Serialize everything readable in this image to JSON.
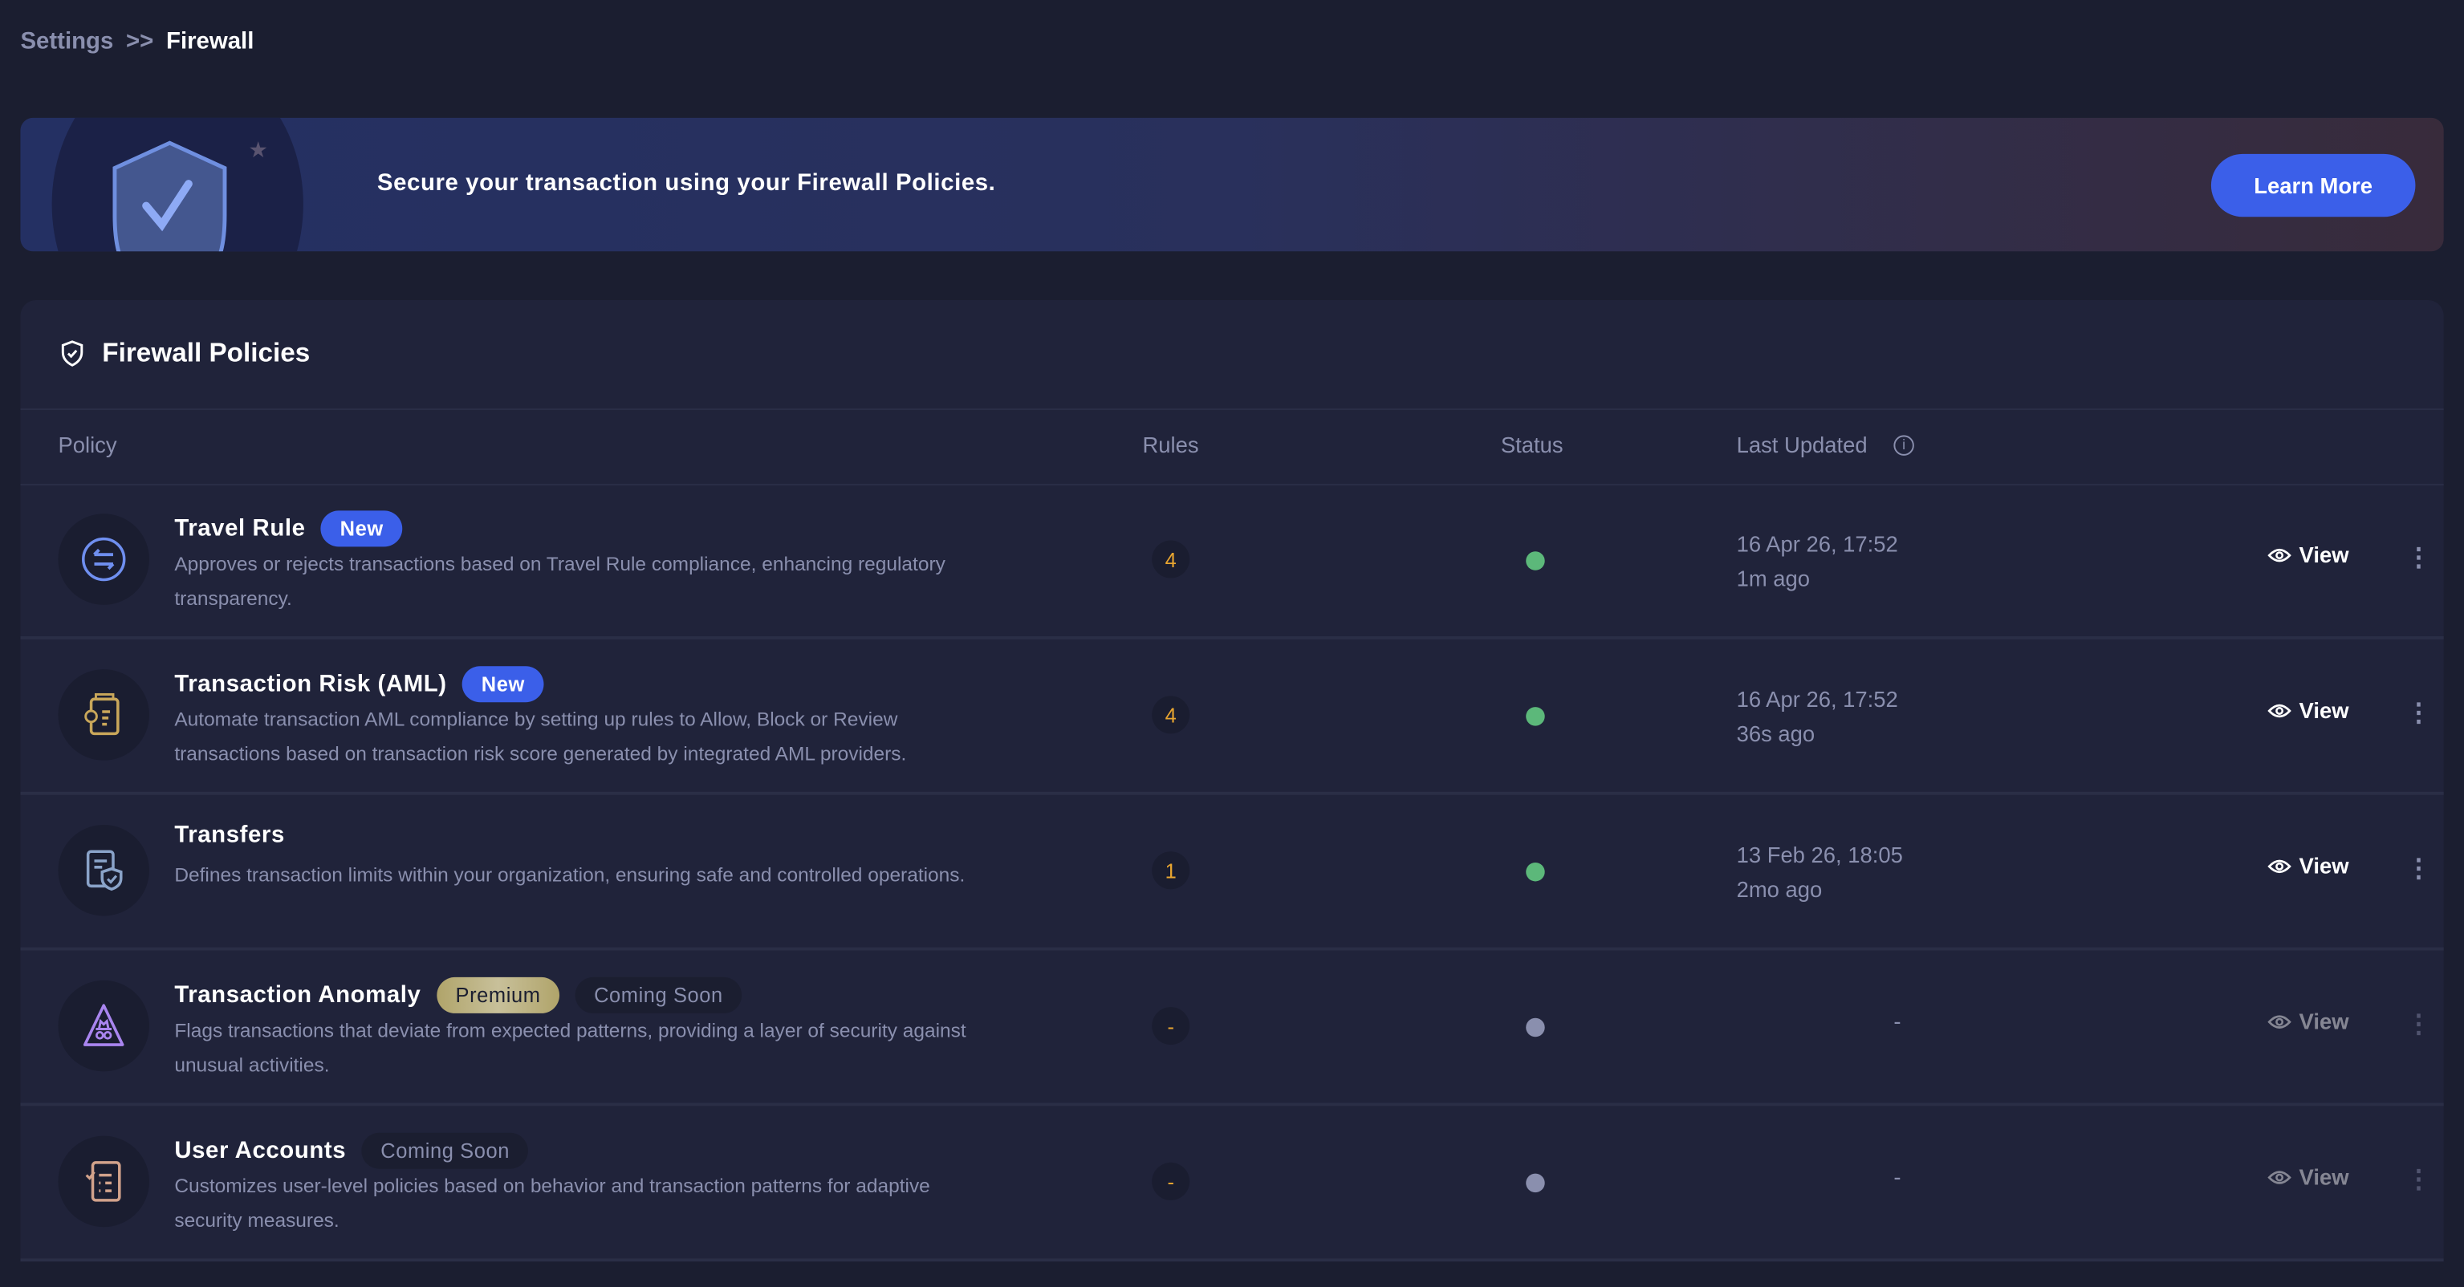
{
  "breadcrumb": {
    "parent": "Settings",
    "separator": ">>",
    "current": "Firewall"
  },
  "banner": {
    "message": "Secure your transaction using your Firewall Policies.",
    "button": "Learn More"
  },
  "card": {
    "title": "Firewall Policies"
  },
  "table": {
    "columns": {
      "policy": "Policy",
      "rules": "Rules",
      "status": "Status",
      "last_updated": "Last Updated"
    },
    "view_label": "View",
    "rows": [
      {
        "name": "Travel Rule",
        "badges": [
          {
            "label": "New",
            "type": "new"
          }
        ],
        "description": "Approves or rejects transactions based on Travel Rule compliance, enhancing regulatory transparency.",
        "rules": "4",
        "status": "active",
        "date": "16 Apr 26, 17:52",
        "ago": "1m ago",
        "icon": "transfer-arrows-icon"
      },
      {
        "name": "Transaction Risk (AML)",
        "badges": [
          {
            "label": "New",
            "type": "new"
          }
        ],
        "description": "Automate transaction AML compliance by setting up rules to Allow, Block or Review transactions based on transaction risk score generated by integrated AML providers.",
        "rules": "4",
        "status": "active",
        "date": "16 Apr 26, 17:52",
        "ago": "36s ago",
        "icon": "risk-document-icon"
      },
      {
        "name": "Transfers",
        "badges": [],
        "description": "Defines transaction limits within your organization, ensuring safe and controlled operations.",
        "rules": "1",
        "status": "active",
        "date": "13 Feb 26, 18:05",
        "ago": "2mo ago",
        "icon": "document-shield-icon"
      },
      {
        "name": "Transaction Anomaly",
        "badges": [
          {
            "label": "Premium",
            "type": "prem"
          },
          {
            "label": "Coming Soon",
            "type": "soon"
          }
        ],
        "description": "Flags transactions that deviate from expected patterns, providing a layer of security against unusual activities.",
        "rules": "-",
        "status": "inactive",
        "date": "-",
        "ago": "",
        "icon": "incognito-icon"
      },
      {
        "name": "User Accounts",
        "badges": [
          {
            "label": "Coming Soon",
            "type": "soon"
          }
        ],
        "description": "Customizes user-level policies based on behavior and transaction patterns for adaptive security measures.",
        "rules": "-",
        "status": "inactive",
        "date": "-",
        "ago": "",
        "icon": "checklist-icon"
      }
    ]
  },
  "colors": {
    "accent": "#3b5fe9",
    "active": "#5cb87a",
    "inactive": "#8a8fae",
    "rules": "#e8a530",
    "premium": "#b0a46a"
  }
}
